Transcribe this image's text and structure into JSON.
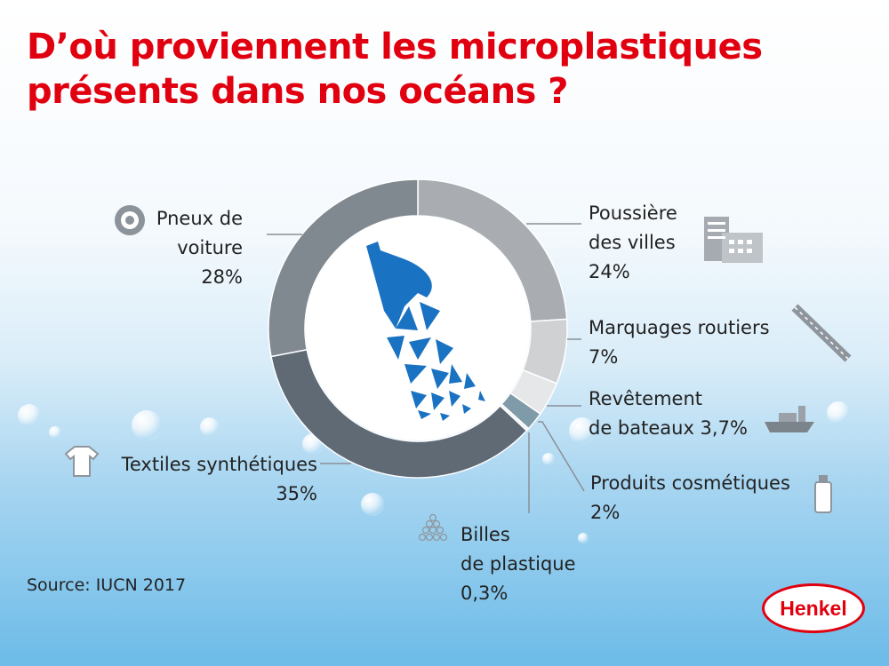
{
  "title": {
    "line1": "D’où proviennent les microplastiques",
    "line2": "présents dans nos océans ?"
  },
  "source": "Source: IUCN 2017",
  "logo": "Henkel",
  "chart_data": {
    "type": "pie",
    "donut": true,
    "title": "D’où proviennent les microplastiques présents dans nos océans ?",
    "start": "top",
    "direction": "clockwise",
    "slices": [
      {
        "label": "Poussière des villes",
        "value": 24,
        "display": "24%",
        "color": "#a9adb1",
        "icon": "building-icon"
      },
      {
        "label": "Marquages routiers",
        "value": 7,
        "display": "7%",
        "color": "#cfd1d3",
        "icon": "road-icon"
      },
      {
        "label": "Revêtement de bateaux",
        "value": 3.7,
        "display": "3,7%",
        "color": "#e6e7e8",
        "icon": "ship-icon"
      },
      {
        "label": "Produits cosmétiques",
        "value": 2,
        "display": "2%",
        "color": "#7f9aa8",
        "icon": "bottle-icon"
      },
      {
        "label": "Billes de plastique",
        "value": 0.3,
        "display": "0,3%",
        "color": "#eef2f4",
        "icon": "pellets-icon"
      },
      {
        "label": "Textiles synthétiques",
        "value": 35,
        "display": "35%",
        "color": "#5f6a75",
        "icon": "tshirt-icon"
      },
      {
        "label": "Pneux de voiture",
        "value": 28,
        "display": "28%",
        "color": "#808890",
        "icon": "tire-icon"
      }
    ]
  },
  "labels": {
    "poussiere": {
      "l1": "Poussière",
      "l2": "des villes",
      "pct": "24%"
    },
    "marquages": {
      "l1": "Marquages routiers",
      "pct": "7%"
    },
    "revetement": {
      "l1": "Revêtement",
      "l2": "de bateaux 3,7%"
    },
    "cosmetiques": {
      "l1": "Produits cosmétiques",
      "pct": "2%"
    },
    "billes": {
      "l1": "Billes",
      "l2": "de plastique",
      "pct": "0,3%"
    },
    "textiles": {
      "l1": "Textiles synthétiques",
      "pct": "35%"
    },
    "pneux": {
      "l1": "Pneux de",
      "l2": "voiture",
      "pct": "28%"
    }
  }
}
